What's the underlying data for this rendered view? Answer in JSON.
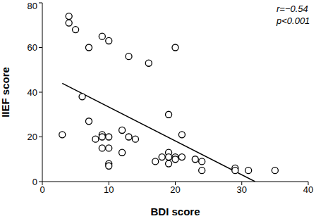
{
  "chart_data": {
    "type": "scatter",
    "x_label": "BDI score",
    "y_label": "IIEF score",
    "annotations": [
      "r=−0.54",
      "p<0.001"
    ],
    "xlim": [
      0,
      40
    ],
    "xticks": [
      0,
      10,
      20,
      30,
      40
    ],
    "ylim": [
      0,
      80
    ],
    "yticks": [
      0,
      20,
      40,
      60,
      80
    ],
    "grid": false,
    "marker": "hollow_circle",
    "color": "#000000",
    "x": [
      4,
      4,
      5,
      9,
      10,
      7,
      13,
      20,
      16,
      6,
      3,
      7,
      8,
      9,
      9,
      10,
      9,
      10,
      10,
      10,
      12,
      13,
      14,
      12,
      19,
      21,
      17,
      18,
      19,
      19,
      20,
      21,
      19,
      20,
      23,
      24,
      24,
      29,
      29,
      31,
      35
    ],
    "values": [
      74,
      71,
      68,
      65,
      63,
      60,
      56,
      60,
      53,
      38,
      21,
      27,
      19,
      21,
      20,
      20,
      15,
      15,
      8,
      7,
      23,
      20,
      19,
      13,
      30,
      21,
      9,
      11,
      13,
      11,
      11,
      11,
      8,
      10,
      10,
      9,
      5,
      6,
      5,
      5,
      5
    ],
    "fit_line": {
      "x": [
        3,
        32
      ],
      "values": [
        44,
        0
      ]
    }
  }
}
